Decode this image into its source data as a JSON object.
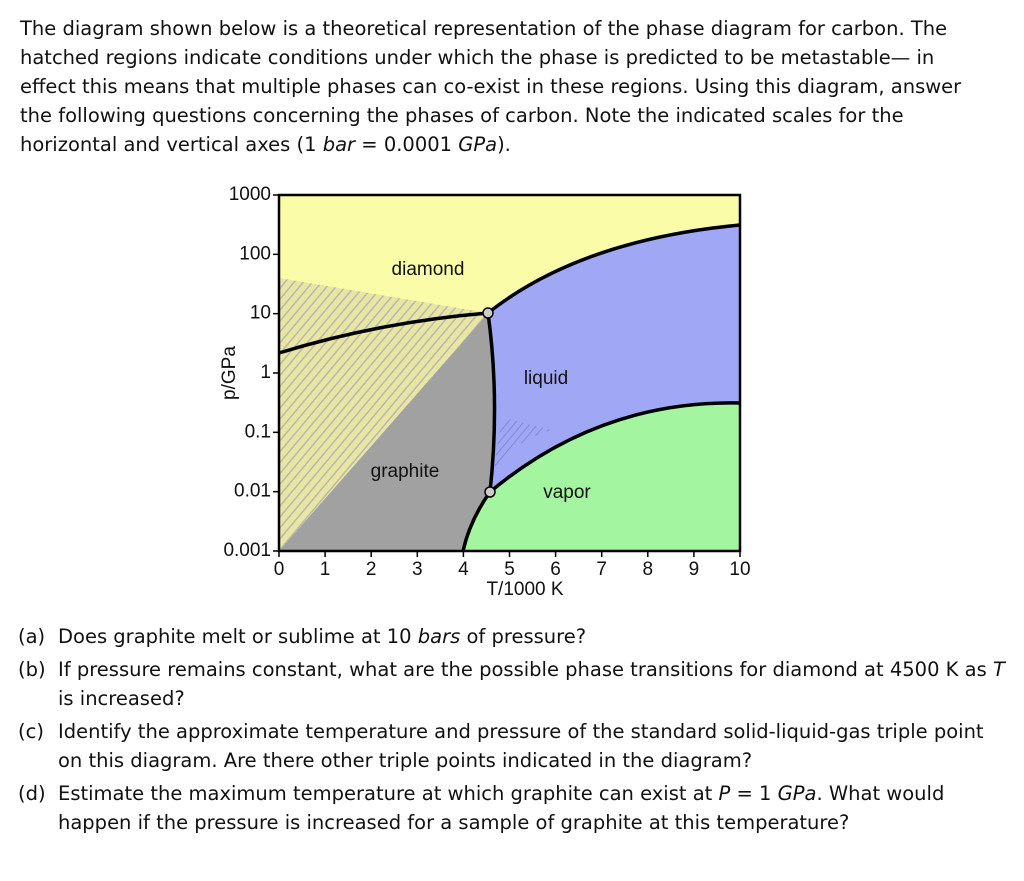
{
  "intro": [
    "The diagram shown below is a theoretical representation of the phase diagram for carbon. The hatched regions indicate conditions under which the phase is predicted to be metastable— in effect this means that multiple phases can co-exist in these regions. Using this diagram, answer the following questions concerning the phases of carbon. Note the indicated scales for the horizontal and vertical axes (1 ",
    "bar",
    " = 0.0001 ",
    "GPa",
    ")."
  ],
  "figure": {
    "x_label": "T/1000 K",
    "y_label": "p/GPa",
    "xlim": [
      0,
      10
    ],
    "ylim": [
      0.001,
      1000
    ],
    "log_y": true,
    "xticks": [
      0,
      1,
      2,
      3,
      4,
      5,
      6,
      7,
      8,
      9,
      10
    ],
    "yticks": [
      1000,
      100,
      10,
      1,
      0.1,
      0.01,
      0.001
    ],
    "regions": [
      "diamond",
      "liquid",
      "graphite",
      "vapor"
    ]
  },
  "questions": [
    {
      "label": "(a)",
      "text": [
        "Does graphite melt or sublime at 10 ",
        "bars",
        " of pressure?"
      ]
    },
    {
      "label": "(b)",
      "text": [
        "If pressure remains constant, what are the possible phase transitions for diamond at 4500 K as ",
        "T",
        " is increased?"
      ]
    },
    {
      "label": "(c)",
      "text": [
        "Identify the approximate temperature and pressure of the standard solid-liquid-gas triple point on this diagram. Are there other triple points indicated in the diagram?"
      ]
    },
    {
      "label": "(d)",
      "text": [
        "Estimate the maximum temperature at which graphite can exist at ",
        "P",
        " = 1 ",
        "GPa",
        ". What would happen if the pressure is increased for a sample of graphite at this temperature?"
      ]
    }
  ]
}
